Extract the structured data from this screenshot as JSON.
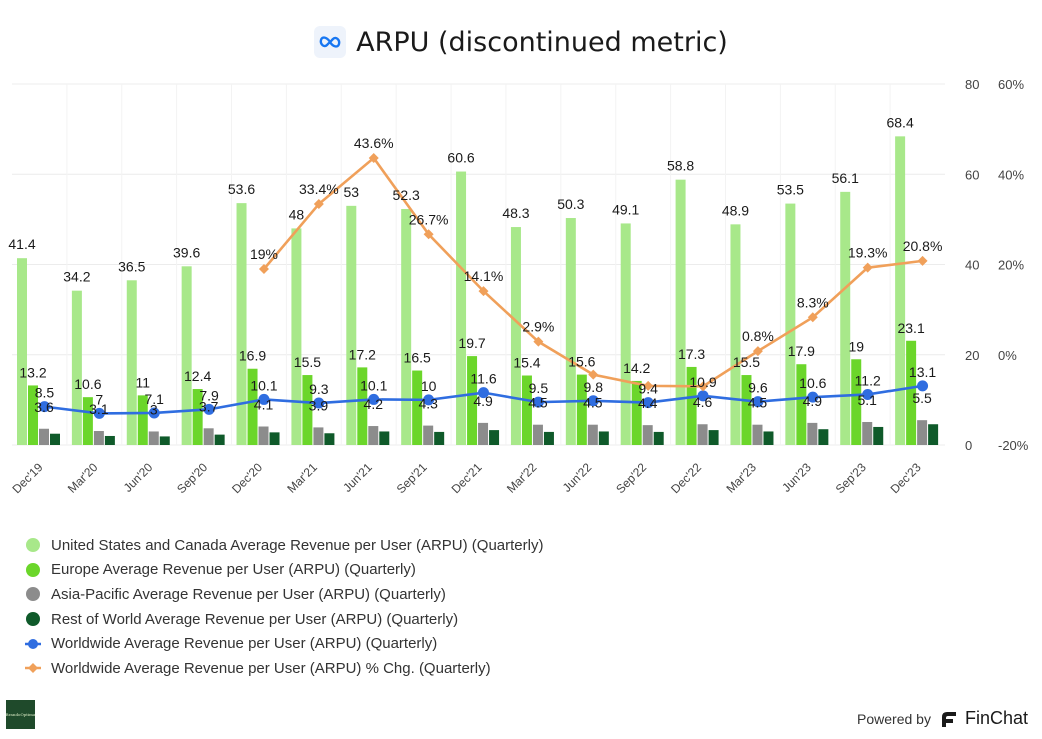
{
  "header": {
    "title": "ARPU (discontinued metric)",
    "logo_icon": "meta-infinity-icon"
  },
  "chart_data": {
    "type": "bar",
    "categories": [
      "Dec'19",
      "Mar'20",
      "Jun'20",
      "Sep'20",
      "Dec'20",
      "Mar'21",
      "Jun'21",
      "Sep'21",
      "Dec'21",
      "Mar'22",
      "Jun'22",
      "Sep'22",
      "Dec'22",
      "Mar'23",
      "Jun'23",
      "Sep'23",
      "Dec'23"
    ],
    "y_left": {
      "range": [
        0,
        80
      ],
      "ticks": [
        "80",
        "60",
        "40",
        "20",
        "0"
      ]
    },
    "y_right": {
      "range": [
        -20,
        60
      ],
      "unit": "%",
      "ticks": [
        "60%",
        "40%",
        "20%",
        "0%",
        "-20%"
      ]
    },
    "grid": true,
    "legend_position": "bottom-left",
    "series": [
      {
        "name": "United States and Canada Average Revenue per User (ARPU) (Quarterly)",
        "kind": "bar",
        "axis": "left",
        "color": "#a8e88a",
        "values": [
          41.4,
          34.2,
          36.5,
          39.6,
          53.6,
          48,
          53,
          52.3,
          60.6,
          48.3,
          50.3,
          49.1,
          58.8,
          48.9,
          53.5,
          56.1,
          68.4
        ],
        "labels": [
          "41.4",
          "34.2",
          "36.5",
          "39.6",
          "53.6",
          "48",
          "53",
          "52.3",
          "60.6",
          "48.3",
          "50.3",
          "49.1",
          "58.8",
          "48.9",
          "53.5",
          "56.1",
          "68.4"
        ]
      },
      {
        "name": "Europe Average Revenue per User (ARPU) (Quarterly)",
        "kind": "bar",
        "axis": "left",
        "color": "#6bd62a",
        "values": [
          13.2,
          10.6,
          11,
          12.4,
          16.9,
          15.5,
          17.2,
          16.5,
          19.7,
          15.4,
          15.6,
          14.2,
          17.3,
          15.5,
          17.9,
          19,
          23.1
        ],
        "labels": [
          "13.2",
          "10.6",
          "11",
          "12.4",
          "16.9",
          "15.5",
          "17.2",
          "16.5",
          "19.7",
          "15.4",
          "15.6",
          "14.2",
          "17.3",
          "15.5",
          "17.9",
          "19",
          "23.1"
        ]
      },
      {
        "name": "Asia-Pacific Average Revenue per User (ARPU) (Quarterly)",
        "kind": "bar",
        "axis": "left",
        "color": "#8c8c8c",
        "values": [
          3.6,
          3.1,
          3,
          3.7,
          4.1,
          3.9,
          4.2,
          4.3,
          4.9,
          4.5,
          4.5,
          4.4,
          4.6,
          4.5,
          4.9,
          5.1,
          5.5
        ],
        "labels": [
          "3.6",
          "3.1",
          "3",
          "3.7",
          "4.1",
          "3.9",
          "4.2",
          "4.3",
          "4.9",
          "4.5",
          "4.5",
          "4.4",
          "4.6",
          "4.5",
          "4.9",
          "5.1",
          "5.5"
        ]
      },
      {
        "name": "Rest of World Average Revenue per User (ARPU) (Quarterly)",
        "kind": "bar",
        "axis": "left",
        "color": "#0f5a2a",
        "values": [
          2.5,
          2.0,
          1.9,
          2.3,
          2.8,
          2.6,
          3.0,
          2.9,
          3.3,
          2.9,
          3.0,
          2.9,
          3.3,
          3.0,
          3.5,
          4.0,
          4.6
        ],
        "labels": []
      },
      {
        "name": "Worldwide Average Revenue per User (ARPU) (Quarterly)",
        "kind": "line",
        "axis": "left",
        "color": "#2f6de0",
        "values": [
          8.5,
          7,
          7.1,
          7.9,
          10.1,
          9.3,
          10.1,
          10,
          11.6,
          9.5,
          9.8,
          9.4,
          10.9,
          9.6,
          10.6,
          11.2,
          13.1
        ],
        "labels": [
          "8.5",
          "7",
          "7.1",
          "7.9",
          "10.1",
          "9.3",
          "10.1",
          "10",
          "11.6",
          "9.5",
          "9.8",
          "9.4",
          "10.9",
          "9.6",
          "10.6",
          "11.2",
          "13.1"
        ]
      },
      {
        "name": "Worldwide Average Revenue per User (ARPU) % Chg. (Quarterly)",
        "kind": "line",
        "axis": "right",
        "color": "#f0a05a",
        "values": [
          null,
          null,
          null,
          null,
          19,
          33.4,
          43.6,
          26.7,
          14.1,
          2.9,
          -4.4,
          -6.9,
          -7.0,
          0.8,
          8.3,
          19.3,
          20.8
        ],
        "labels": [
          "",
          "",
          "",
          "",
          "19%",
          "33.4%",
          "43.6%",
          "26.7%",
          "14.1%",
          "2.9%",
          "",
          "",
          "",
          "0.8%",
          "8.3%",
          "19.3%",
          "20.8%"
        ]
      }
    ]
  },
  "footer": {
    "powered_by": "Powered by",
    "brand": "FinChat",
    "badge_text": "BrandoOptima"
  }
}
